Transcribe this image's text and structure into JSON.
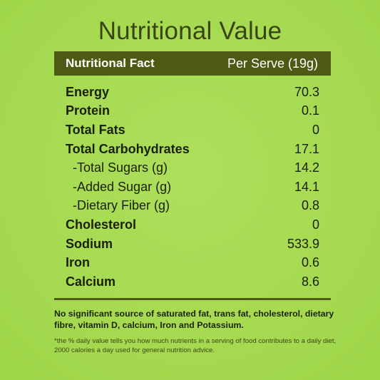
{
  "title": "Nutritional Value",
  "header": {
    "left": "Nutritional Fact",
    "right": "Per Serve (19g)"
  },
  "rows": [
    {
      "label": "Energy",
      "value": "70.3"
    },
    {
      "label": "Protein",
      "value": "0.1"
    },
    {
      "label": "Total Fats",
      "value": "0"
    },
    {
      "label": "Total Carbohydrates",
      "value": "17.1"
    },
    {
      "label": "-Total Sugars (g)",
      "value": "14.2"
    },
    {
      "label": "-Added Sugar (g)",
      "value": "14.1"
    },
    {
      "label": "-Dietary Fiber (g)",
      "value": "0.8"
    },
    {
      "label": "Cholesterol",
      "value": "0"
    },
    {
      "label": "Sodium",
      "value": "533.9"
    },
    {
      "label": "Iron",
      "value": "0.6"
    },
    {
      "label": "Calcium",
      "value": "8.6"
    }
  ],
  "note": "No significant source of saturated fat, trans fat, cholesterol, dietary fibre, vitamin D, calcium, Iron and Potassium.",
  "footnote": "*the % daily value tells you how much nutrients in a serving of food contributes to a daily diet, 2000 calories a day used for general nutrition advice.",
  "colors": {
    "background": "#a6dc53",
    "header_bar": "#4c5a13",
    "title_text": "#3a4410"
  }
}
